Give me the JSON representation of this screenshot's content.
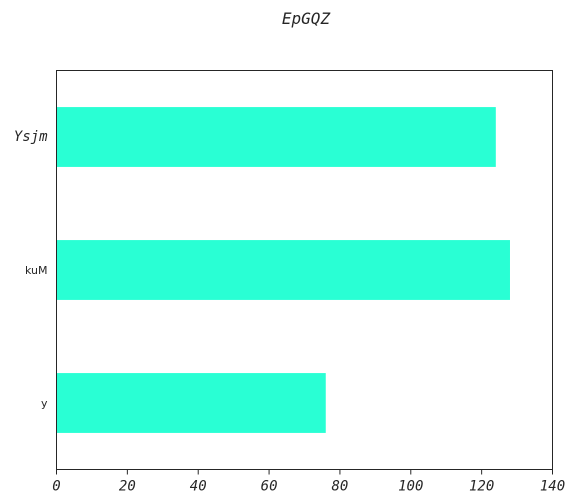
{
  "chart_data": {
    "type": "bar",
    "orientation": "horizontal",
    "title": "EpGQZ",
    "xlabel": "",
    "ylabel": "",
    "categories": [
      "Ysjm",
      "kuM",
      "y"
    ],
    "values": [
      124,
      128,
      76
    ],
    "xlim": [
      0,
      140
    ],
    "xticks": [
      0,
      20,
      40,
      60,
      80,
      100,
      120,
      140
    ],
    "grid": false,
    "bar_color": "#29ffd4",
    "axis_color": "#262626"
  }
}
